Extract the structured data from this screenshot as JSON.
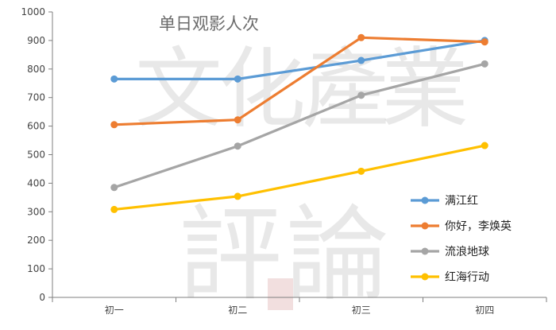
{
  "chart_data": {
    "type": "line",
    "title": "单日观影人次",
    "categories": [
      "初一",
      "初二",
      "初三",
      "初四"
    ],
    "ylim": [
      0,
      1000
    ],
    "yticks": [
      0,
      100,
      200,
      300,
      400,
      500,
      600,
      700,
      800,
      900,
      1000
    ],
    "grid": false,
    "legend_position": "right",
    "series": [
      {
        "name": "满江红",
        "values": [
          765,
          765,
          830,
          900
        ],
        "color": "#5b9bd5"
      },
      {
        "name": "你好，李焕英",
        "values": [
          605,
          622,
          910,
          895
        ],
        "color": "#ed7d31"
      },
      {
        "name": "流浪地球",
        "values": [
          385,
          530,
          708,
          818
        ],
        "color": "#a5a5a5"
      },
      {
        "name": "红海行动",
        "values": [
          308,
          354,
          442,
          532
        ],
        "color": "#ffc000"
      }
    ]
  }
}
